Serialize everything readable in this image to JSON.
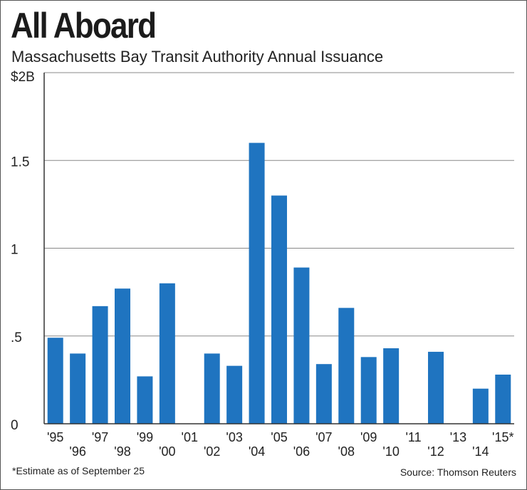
{
  "header": {
    "title": "All Aboard",
    "subtitle": "Massachusetts Bay Transit Authority Annual Issuance"
  },
  "footer": {
    "footnote": "*Estimate as of September 25",
    "source": "Source: Thomson Reuters"
  },
  "colors": {
    "bar": "#1f74c0",
    "grid": "#888888",
    "axis": "#333333"
  },
  "chart_data": {
    "type": "bar",
    "categories": [
      "'95",
      "'96",
      "'97",
      "'98",
      "'99",
      "'00",
      "'01",
      "'02",
      "'03",
      "'04",
      "'05",
      "'06",
      "'07",
      "'08",
      "'09",
      "'10",
      "'11",
      "'12",
      "'13",
      "'14",
      "'15*"
    ],
    "values": [
      0.49,
      0.4,
      0.67,
      0.77,
      0.27,
      0.8,
      0,
      0.4,
      0.33,
      1.6,
      1.3,
      0.89,
      0.34,
      0.66,
      0.38,
      0.43,
      0,
      0.41,
      0,
      0.2,
      0.28
    ],
    "ylim": [
      0,
      2
    ],
    "yticks": [
      {
        "value": 0,
        "label": "0"
      },
      {
        "value": 0.5,
        "label": ".5"
      },
      {
        "value": 1,
        "label": "1"
      },
      {
        "value": 1.5,
        "label": "1.5"
      },
      {
        "value": 2,
        "label": "$2B"
      }
    ],
    "grid": true,
    "legend": "none"
  }
}
